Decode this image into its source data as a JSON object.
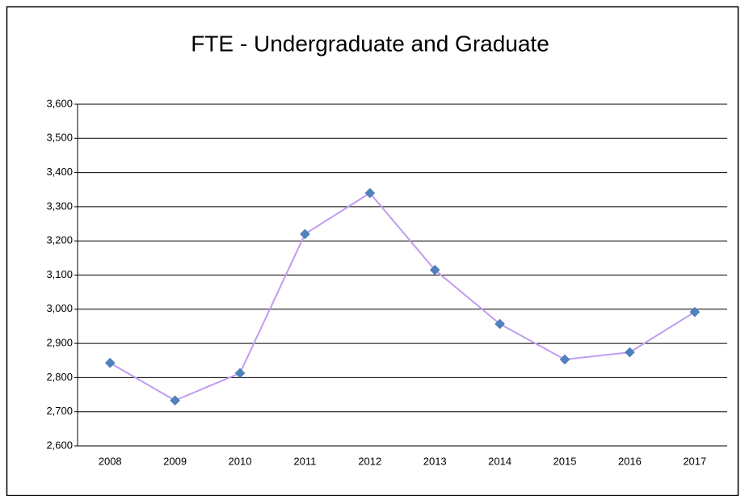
{
  "chart_data": {
    "type": "line",
    "title": "FTE - Undergraduate and Graduate",
    "categories": [
      "2008",
      "2009",
      "2010",
      "2011",
      "2012",
      "2013",
      "2014",
      "2015",
      "2016",
      "2017"
    ],
    "series": [
      {
        "name": "FTE",
        "line_color": "#c09cf0",
        "color": "#4f81bd",
        "values": [
          2843,
          2733,
          2813,
          3220,
          3340,
          3115,
          2957,
          2853,
          2874,
          2992
        ]
      }
    ],
    "ylim": [
      2600,
      3600
    ],
    "yticks": [
      {
        "value": 2600,
        "label": "2,600"
      },
      {
        "value": 2700,
        "label": "2,700"
      },
      {
        "value": 2800,
        "label": "2,800"
      },
      {
        "value": 2900,
        "label": "2,900"
      },
      {
        "value": 3000,
        "label": "3,000"
      },
      {
        "value": 3100,
        "label": "3,100"
      },
      {
        "value": 3200,
        "label": "3,200"
      },
      {
        "value": 3300,
        "label": "3,300"
      },
      {
        "value": 3400,
        "label": "3,400"
      },
      {
        "value": 3500,
        "label": "3,500"
      },
      {
        "value": 3600,
        "label": "3,600"
      }
    ],
    "grid": true
  }
}
